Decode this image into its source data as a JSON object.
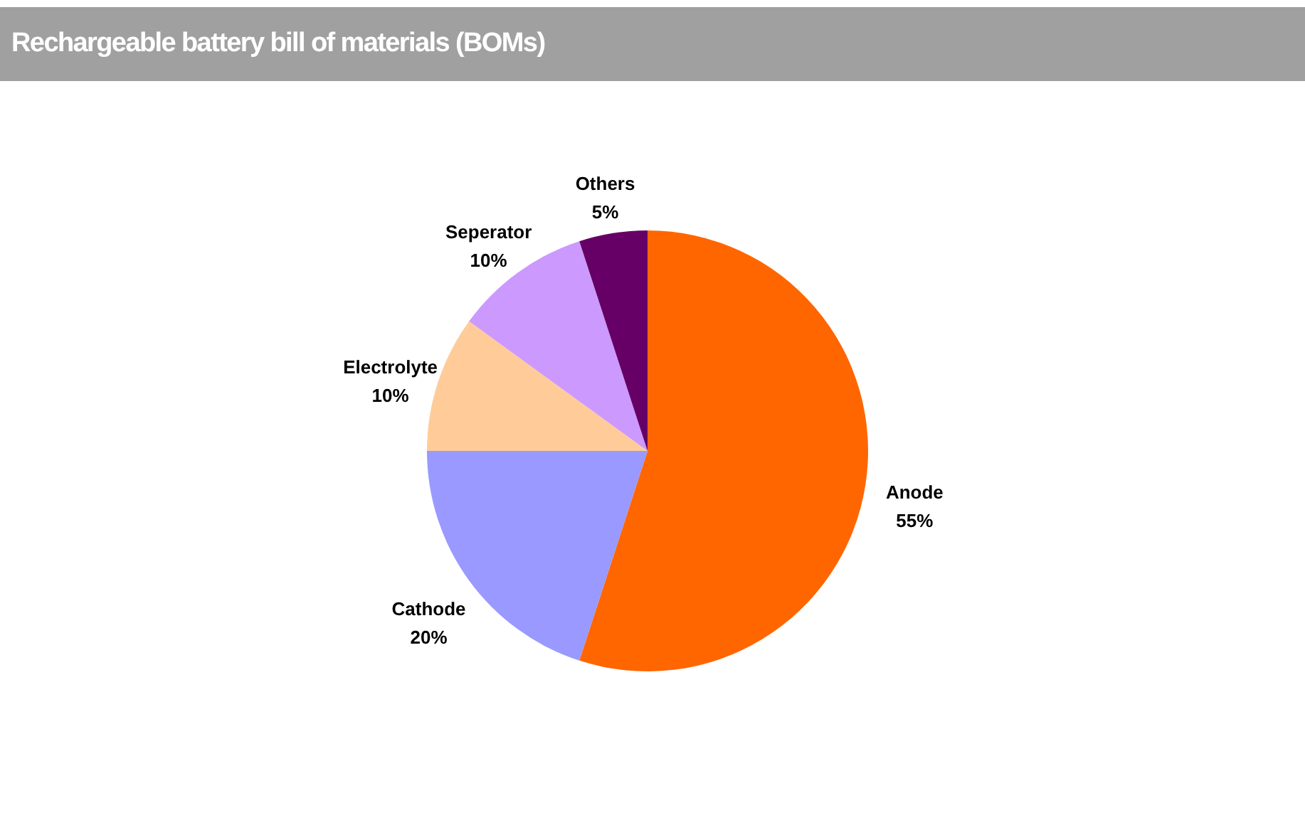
{
  "chart_data": {
    "type": "pie",
    "title": "Rechargeable battery bill of materials (BOMs)",
    "categories": [
      "Anode",
      "Cathode",
      "Electrolyte",
      "Seperator",
      "Others"
    ],
    "values": [
      55,
      20,
      10,
      10,
      5
    ],
    "value_labels": [
      "55%",
      "20%",
      "10%",
      "10%",
      "5%"
    ],
    "colors": [
      "#ff6600",
      "#9999ff",
      "#ffcc99",
      "#cc99ff",
      "#660066"
    ]
  }
}
